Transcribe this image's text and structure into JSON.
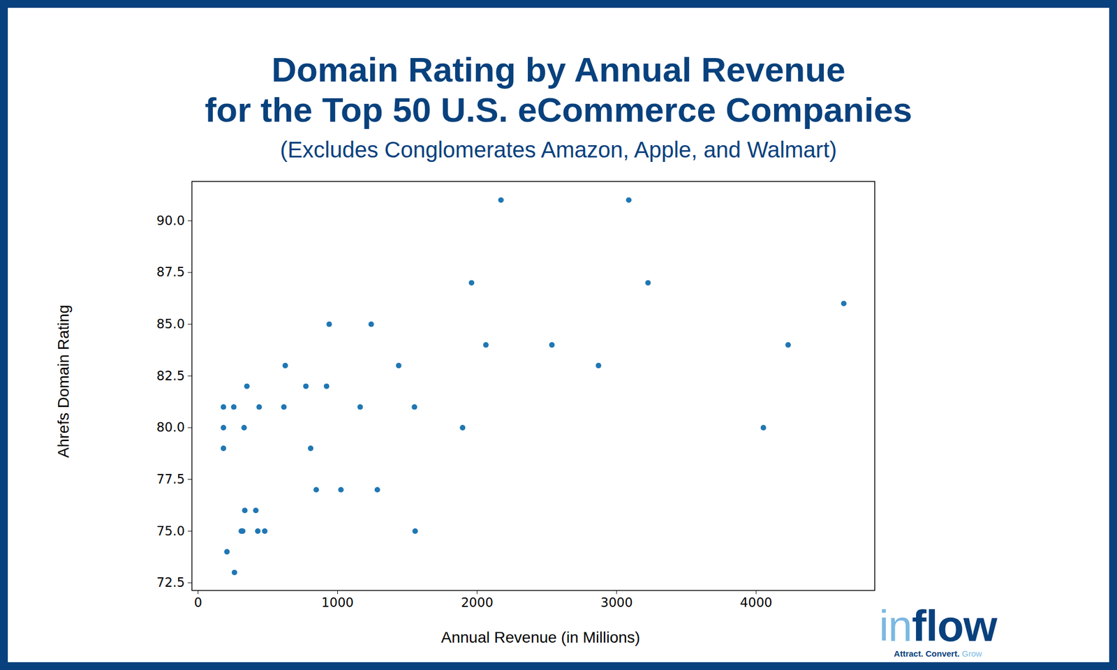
{
  "chart_data": {
    "type": "scatter",
    "title": [
      "Domain Rating by Annual Revenue",
      "for the Top 50 U.S. eCommerce Companies"
    ],
    "subtitle": "(Excludes Conglomerates Amazon, Apple, and Walmart)",
    "x_label": "Annual Revenue (in Millions)",
    "y_label": "Ahrefs Domain Rating",
    "logo": "inflow",
    "logo_tagline": "Attract. Convert. Grow",
    "color": "#1f77b4",
    "marker": "circle",
    "grid": false,
    "x": [
      2171,
      3087,
      1960,
      3225,
      4628,
      940,
      1241,
      2063,
      2536,
      4229,
      625,
      1438,
      2870,
      350,
      773,
      921,
      182,
      256,
      438,
      615,
      1162,
      1551,
      182,
      330,
      1896,
      4052,
      182,
      807,
      847,
      1024,
      1285,
      335,
      414,
      310,
      320,
      428,
      478,
      1556,
      207,
      261
    ],
    "values": [
      91,
      91,
      87,
      87,
      86,
      85,
      85,
      84,
      84,
      84,
      83,
      83,
      83,
      82,
      82,
      82,
      81,
      81,
      81,
      81,
      81,
      81,
      80,
      80,
      80,
      80,
      79,
      79,
      77,
      77,
      77,
      76,
      76,
      75,
      75,
      75,
      75,
      75,
      74,
      73
    ],
    "xlim": [
      -44,
      4850
    ],
    "ylim": [
      72.13,
      91.9
    ],
    "xticks": [
      0,
      1000,
      2000,
      3000,
      4000
    ],
    "yticks": [
      72.5,
      {
        "value": 75,
        "label": "75.0"
      },
      77.5,
      {
        "value": 80,
        "label": "80.0"
      },
      82.5,
      {
        "value": 85,
        "label": "85.0"
      },
      87.5,
      {
        "value": 90,
        "label": "90.0"
      }
    ]
  }
}
